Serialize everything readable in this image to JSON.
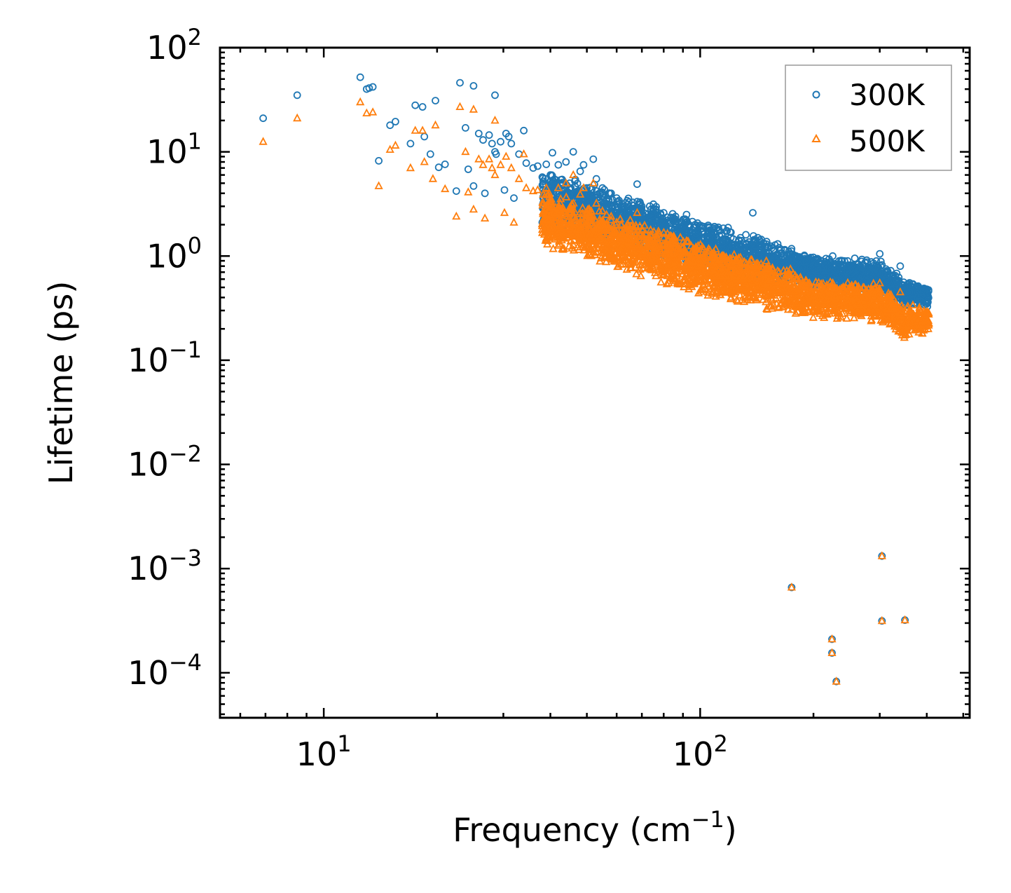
{
  "chart_data": {
    "type": "scatter",
    "title": "",
    "xlabel": "Frequency (cm",
    "xlabel_sup": "−1",
    "xlabel_tail": ")",
    "ylabel": "Lifetime (ps)",
    "xscale": "log",
    "yscale": "log",
    "xlim": [
      5.3,
      520
    ],
    "ylim": [
      3.7e-05,
      100
    ],
    "x_ticks": [
      {
        "value": 10,
        "base": "10",
        "exp": "1"
      },
      {
        "value": 100,
        "base": "10",
        "exp": "2"
      }
    ],
    "y_ticks": [
      {
        "value": 100,
        "base": "10",
        "exp": "2"
      },
      {
        "value": 10,
        "base": "10",
        "exp": "1"
      },
      {
        "value": 1,
        "base": "10",
        "exp": "0"
      },
      {
        "value": 0.1,
        "base": "10",
        "exp": "−1"
      },
      {
        "value": 0.01,
        "base": "10",
        "exp": "−2"
      },
      {
        "value": 0.001,
        "base": "10",
        "exp": "−3"
      },
      {
        "value": 0.0001,
        "base": "10",
        "exp": "−4"
      }
    ],
    "legend_position": "top-right",
    "series": [
      {
        "name": "300K",
        "marker": "circle",
        "color": "#1f77b4",
        "points": [
          [
            6.9,
            21
          ],
          [
            8.5,
            35
          ],
          [
            12.5,
            52
          ],
          [
            13.0,
            40
          ],
          [
            13.2,
            41
          ],
          [
            13.5,
            42
          ],
          [
            14.0,
            8.2
          ],
          [
            15.0,
            18
          ],
          [
            15.5,
            19.5
          ],
          [
            17.0,
            12
          ],
          [
            17.5,
            28
          ],
          [
            18.3,
            27
          ],
          [
            18.5,
            14
          ],
          [
            19.2,
            9.5
          ],
          [
            19.8,
            31
          ],
          [
            20.2,
            7.1
          ],
          [
            21.0,
            7.6
          ],
          [
            22.5,
            4.2
          ],
          [
            23.0,
            46
          ],
          [
            23.8,
            17
          ],
          [
            24.2,
            6.8
          ],
          [
            25.0,
            43
          ],
          [
            25.0,
            4.7
          ],
          [
            25.8,
            15
          ],
          [
            26.5,
            13
          ],
          [
            26.8,
            4.0
          ],
          [
            27.5,
            14.5
          ],
          [
            28.0,
            12
          ],
          [
            28.5,
            35
          ],
          [
            28.5,
            10
          ],
          [
            28.7,
            9.5
          ],
          [
            29.5,
            12.5
          ],
          [
            30.2,
            4.3
          ],
          [
            30.5,
            15
          ],
          [
            31.0,
            14
          ],
          [
            31.5,
            12
          ],
          [
            32.0,
            3.6
          ],
          [
            33.0,
            9.5
          ],
          [
            34.0,
            16
          ],
          [
            34.5,
            7.8
          ],
          [
            36.0,
            7.0
          ],
          [
            37.0,
            7.3
          ],
          [
            39.0,
            7.6
          ],
          [
            40.0,
            6.0
          ],
          [
            40.5,
            9.8
          ],
          [
            42.0,
            7.5
          ],
          [
            44.0,
            8.0
          ],
          [
            45.0,
            5.0
          ],
          [
            46.0,
            10.0
          ],
          [
            48.0,
            6.5
          ],
          [
            49.0,
            7.5
          ],
          [
            50.0,
            4.5
          ],
          [
            52.0,
            8.5
          ],
          [
            53.0,
            5.5
          ],
          [
            55.0,
            4.5
          ],
          [
            58.0,
            4.0
          ],
          [
            60.0,
            3.6
          ],
          [
            64.0,
            3.4
          ],
          [
            68.0,
            4.9
          ],
          [
            70.0,
            3.0
          ],
          [
            74.0,
            2.8
          ],
          [
            80.0,
            2.6
          ],
          [
            86.0,
            2.4
          ],
          [
            92.0,
            2.5
          ],
          [
            97.0,
            2.0
          ],
          [
            105.0,
            1.9
          ],
          [
            112.0,
            1.8
          ],
          [
            120.0,
            1.7
          ],
          [
            128.0,
            1.5
          ],
          [
            138.0,
            2.6
          ],
          [
            140.0,
            1.4
          ],
          [
            150.0,
            1.3
          ],
          [
            162.0,
            1.2
          ],
          [
            172.0,
            1.1
          ],
          [
            180.0,
            1.0
          ],
          [
            195.0,
            0.95
          ],
          [
            210.0,
            0.9
          ],
          [
            225.0,
            1.0
          ],
          [
            240.0,
            0.8
          ],
          [
            260.0,
            0.75
          ],
          [
            280.0,
            0.7
          ],
          [
            300.0,
            1.05
          ],
          [
            315.0,
            0.7
          ],
          [
            340.0,
            0.8
          ],
          [
            360.0,
            0.45
          ],
          [
            380.0,
            0.42
          ],
          [
            400.0,
            0.48
          ],
          [
            175.0,
            0.00066
          ],
          [
            224.0,
            0.00021
          ],
          [
            224.0,
            0.000155
          ],
          [
            230.0,
            8.25e-05
          ],
          [
            304.0,
            0.00132
          ],
          [
            304.0,
            0.000315
          ],
          [
            350.0,
            0.00032
          ]
        ]
      },
      {
        "name": "500K",
        "marker": "triangle",
        "color": "#ff7f0e",
        "points": [
          [
            6.9,
            12.5
          ],
          [
            8.5,
            21
          ],
          [
            12.5,
            30
          ],
          [
            13.0,
            23.5
          ],
          [
            13.5,
            24
          ],
          [
            14.0,
            4.7
          ],
          [
            15.0,
            10.5
          ],
          [
            15.5,
            11.5
          ],
          [
            17.0,
            7.0
          ],
          [
            17.5,
            16
          ],
          [
            18.3,
            16
          ],
          [
            18.5,
            8.0
          ],
          [
            19.5,
            5.5
          ],
          [
            19.8,
            18
          ],
          [
            21.0,
            4.4
          ],
          [
            22.5,
            2.4
          ],
          [
            23.0,
            27
          ],
          [
            23.8,
            10
          ],
          [
            24.2,
            4.1
          ],
          [
            25.0,
            25.5
          ],
          [
            25.0,
            2.8
          ],
          [
            25.8,
            8.5
          ],
          [
            26.5,
            7.5
          ],
          [
            26.8,
            2.3
          ],
          [
            27.5,
            8.5
          ],
          [
            28.0,
            7.0
          ],
          [
            28.5,
            20
          ],
          [
            28.5,
            6.0
          ],
          [
            29.5,
            7.5
          ],
          [
            30.2,
            2.6
          ],
          [
            30.5,
            9.0
          ],
          [
            31.5,
            7.0
          ],
          [
            32.0,
            2.1
          ],
          [
            33.0,
            5.5
          ],
          [
            34.0,
            9.5
          ],
          [
            34.5,
            4.5
          ],
          [
            36.0,
            4.2
          ],
          [
            37.0,
            4.3
          ],
          [
            39.0,
            4.5
          ],
          [
            40.0,
            3.5
          ],
          [
            42.0,
            4.5
          ],
          [
            44.0,
            5.0
          ],
          [
            45.0,
            2.9
          ],
          [
            46.0,
            6.0
          ],
          [
            48.0,
            3.9
          ],
          [
            49.0,
            4.5
          ],
          [
            50.0,
            2.6
          ],
          [
            52.0,
            5.0
          ],
          [
            53.0,
            3.2
          ],
          [
            55.0,
            2.7
          ],
          [
            58.0,
            2.4
          ],
          [
            60.0,
            2.1
          ],
          [
            64.0,
            2.0
          ],
          [
            68.0,
            2.6
          ],
          [
            70.0,
            1.8
          ],
          [
            74.0,
            1.6
          ],
          [
            80.0,
            1.5
          ],
          [
            86.0,
            1.4
          ],
          [
            92.0,
            1.4
          ],
          [
            97.0,
            1.15
          ],
          [
            105.0,
            1.1
          ],
          [
            112.0,
            1.0
          ],
          [
            120.0,
            0.95
          ],
          [
            128.0,
            0.85
          ],
          [
            140.0,
            0.8
          ],
          [
            150.0,
            0.75
          ],
          [
            162.0,
            0.7
          ],
          [
            172.0,
            0.65
          ],
          [
            180.0,
            0.6
          ],
          [
            195.0,
            0.55
          ],
          [
            210.0,
            0.52
          ],
          [
            225.0,
            0.55
          ],
          [
            240.0,
            0.48
          ],
          [
            260.0,
            0.45
          ],
          [
            280.0,
            0.4
          ],
          [
            300.0,
            0.55
          ],
          [
            315.0,
            0.4
          ],
          [
            340.0,
            0.45
          ],
          [
            360.0,
            0.22
          ],
          [
            380.0,
            0.2
          ],
          [
            400.0,
            0.28
          ],
          [
            175.0,
            0.00066
          ],
          [
            224.0,
            0.00021
          ],
          [
            224.0,
            0.000155
          ],
          [
            230.0,
            8.25e-05
          ],
          [
            304.0,
            0.00132
          ],
          [
            304.0,
            0.000315
          ],
          [
            350.0,
            0.00032
          ]
        ]
      }
    ],
    "dense_bands": [
      {
        "series": "300K",
        "x_range": [
          38,
          405
        ],
        "upper_y_at_x": [
          [
            38,
            7.5
          ],
          [
            60,
            4.2
          ],
          [
            100,
            2.3
          ],
          [
            150,
            1.5
          ],
          [
            200,
            1.0
          ],
          [
            300,
            0.95
          ],
          [
            350,
            0.6
          ],
          [
            405,
            0.5
          ]
        ],
        "lower_y_at_x": [
          [
            38,
            2.0
          ],
          [
            60,
            1.2
          ],
          [
            100,
            0.75
          ],
          [
            150,
            0.55
          ],
          [
            200,
            0.48
          ],
          [
            300,
            0.42
          ],
          [
            350,
            0.32
          ],
          [
            405,
            0.32
          ]
        ]
      },
      {
        "series": "500K",
        "x_range": [
          38,
          405
        ],
        "upper_y_at_x": [
          [
            38,
            4.5
          ],
          [
            60,
            2.5
          ],
          [
            100,
            1.4
          ],
          [
            150,
            0.95
          ],
          [
            200,
            0.62
          ],
          [
            300,
            0.55
          ],
          [
            350,
            0.36
          ],
          [
            405,
            0.3
          ]
        ],
        "lower_y_at_x": [
          [
            38,
            1.2
          ],
          [
            60,
            0.7
          ],
          [
            100,
            0.42
          ],
          [
            150,
            0.3
          ],
          [
            200,
            0.25
          ],
          [
            300,
            0.22
          ],
          [
            350,
            0.16
          ],
          [
            405,
            0.18
          ]
        ]
      }
    ]
  }
}
